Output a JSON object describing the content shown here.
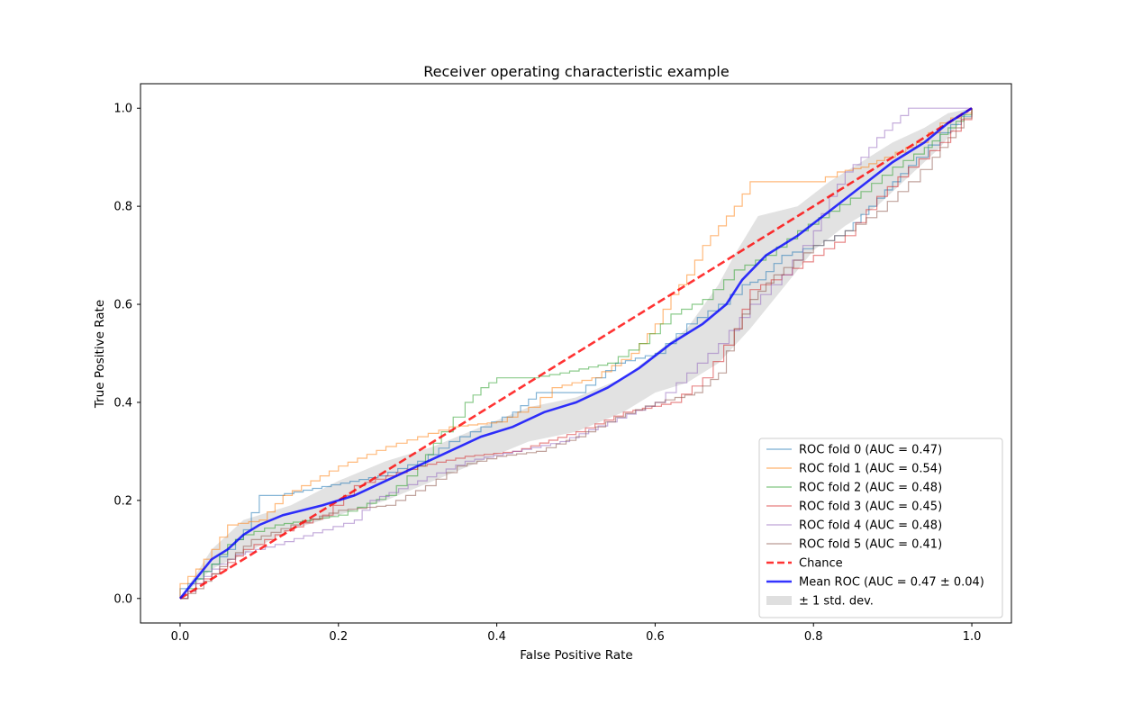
{
  "chart_data": {
    "type": "line",
    "title": "Receiver operating characteristic example",
    "xlabel": "False Positive Rate",
    "ylabel": "True Positive Rate",
    "xlim": [
      -0.05,
      1.05
    ],
    "ylim": [
      -0.05,
      1.05
    ],
    "xticks": [
      0.0,
      0.2,
      0.4,
      0.6,
      0.8,
      1.0
    ],
    "yticks": [
      0.0,
      0.2,
      0.4,
      0.6,
      0.8,
      1.0
    ],
    "xtick_labels": [
      "0.0",
      "0.2",
      "0.4",
      "0.6",
      "0.8",
      "1.0"
    ],
    "ytick_labels": [
      "0.0",
      "0.2",
      "0.4",
      "0.6",
      "0.8",
      "1.0"
    ],
    "grid": false,
    "legend_position": "lower-right",
    "series": [
      {
        "name": "ROC fold 0 (AUC = 0.47)",
        "color": "#1f77b4",
        "points": [
          [
            0,
            0
          ],
          [
            0,
            0.02
          ],
          [
            0.02,
            0.04
          ],
          [
            0.04,
            0.07
          ],
          [
            0.06,
            0.1
          ],
          [
            0.08,
            0.14
          ],
          [
            0.1,
            0.21
          ],
          [
            0.12,
            0.21
          ],
          [
            0.25,
            0.25
          ],
          [
            0.3,
            0.28
          ],
          [
            0.34,
            0.32
          ],
          [
            0.38,
            0.35
          ],
          [
            0.42,
            0.38
          ],
          [
            0.45,
            0.42
          ],
          [
            0.5,
            0.42
          ],
          [
            0.55,
            0.48
          ],
          [
            0.6,
            0.5
          ],
          [
            0.64,
            0.56
          ],
          [
            0.68,
            0.6
          ],
          [
            0.71,
            0.64
          ],
          [
            0.73,
            0.65
          ],
          [
            0.76,
            0.7
          ],
          [
            0.8,
            0.72
          ],
          [
            0.84,
            0.75
          ],
          [
            0.87,
            0.8
          ],
          [
            0.9,
            0.85
          ],
          [
            0.93,
            0.9
          ],
          [
            0.96,
            0.95
          ],
          [
            1,
            1
          ]
        ]
      },
      {
        "name": "ROC fold 1 (AUC = 0.54)",
        "color": "#ff7f0e",
        "points": [
          [
            0,
            0
          ],
          [
            0,
            0.03
          ],
          [
            0.02,
            0.06
          ],
          [
            0.04,
            0.1
          ],
          [
            0.06,
            0.15
          ],
          [
            0.1,
            0.16
          ],
          [
            0.13,
            0.21
          ],
          [
            0.2,
            0.27
          ],
          [
            0.26,
            0.31
          ],
          [
            0.3,
            0.33
          ],
          [
            0.34,
            0.35
          ],
          [
            0.4,
            0.36
          ],
          [
            0.44,
            0.39
          ],
          [
            0.47,
            0.43
          ],
          [
            0.52,
            0.45
          ],
          [
            0.57,
            0.5
          ],
          [
            0.6,
            0.56
          ],
          [
            0.62,
            0.62
          ],
          [
            0.64,
            0.66
          ],
          [
            0.66,
            0.72
          ],
          [
            0.68,
            0.76
          ],
          [
            0.7,
            0.8
          ],
          [
            0.72,
            0.85
          ],
          [
            0.8,
            0.85
          ],
          [
            0.83,
            0.87
          ],
          [
            0.86,
            0.88
          ],
          [
            0.89,
            0.9
          ],
          [
            0.93,
            0.93
          ],
          [
            0.96,
            0.97
          ],
          [
            1,
            1
          ]
        ]
      },
      {
        "name": "ROC fold 2 (AUC = 0.48)",
        "color": "#2ca02c",
        "points": [
          [
            0,
            0
          ],
          [
            0.02,
            0.04
          ],
          [
            0.04,
            0.07
          ],
          [
            0.06,
            0.11
          ],
          [
            0.08,
            0.13
          ],
          [
            0.12,
            0.15
          ],
          [
            0.2,
            0.17
          ],
          [
            0.26,
            0.21
          ],
          [
            0.3,
            0.27
          ],
          [
            0.33,
            0.34
          ],
          [
            0.36,
            0.4
          ],
          [
            0.38,
            0.43
          ],
          [
            0.4,
            0.45
          ],
          [
            0.44,
            0.45
          ],
          [
            0.48,
            0.46
          ],
          [
            0.54,
            0.48
          ],
          [
            0.58,
            0.52
          ],
          [
            0.62,
            0.58
          ],
          [
            0.66,
            0.61
          ],
          [
            0.7,
            0.67
          ],
          [
            0.74,
            0.7
          ],
          [
            0.78,
            0.75
          ],
          [
            0.82,
            0.79
          ],
          [
            0.86,
            0.83
          ],
          [
            0.9,
            0.88
          ],
          [
            0.94,
            0.92
          ],
          [
            0.97,
            0.96
          ],
          [
            1,
            1
          ]
        ]
      },
      {
        "name": "ROC fold 3 (AUC = 0.45)",
        "color": "#d62728",
        "points": [
          [
            0,
            0
          ],
          [
            0.02,
            0.03
          ],
          [
            0.05,
            0.06
          ],
          [
            0.08,
            0.1
          ],
          [
            0.12,
            0.13
          ],
          [
            0.18,
            0.17
          ],
          [
            0.22,
            0.23
          ],
          [
            0.26,
            0.25
          ],
          [
            0.3,
            0.27
          ],
          [
            0.36,
            0.29
          ],
          [
            0.42,
            0.3
          ],
          [
            0.5,
            0.34
          ],
          [
            0.56,
            0.38
          ],
          [
            0.62,
            0.4
          ],
          [
            0.66,
            0.45
          ],
          [
            0.7,
            0.55
          ],
          [
            0.72,
            0.63
          ],
          [
            0.76,
            0.66
          ],
          [
            0.8,
            0.7
          ],
          [
            0.84,
            0.74
          ],
          [
            0.88,
            0.82
          ],
          [
            0.92,
            0.88
          ],
          [
            0.96,
            0.93
          ],
          [
            1,
            1
          ]
        ]
      },
      {
        "name": "ROC fold 4 (AUC = 0.48)",
        "color": "#9467bd",
        "points": [
          [
            0,
            0
          ],
          [
            0.02,
            0.03
          ],
          [
            0.04,
            0.06
          ],
          [
            0.07,
            0.09
          ],
          [
            0.12,
            0.11
          ],
          [
            0.18,
            0.14
          ],
          [
            0.22,
            0.16
          ],
          [
            0.24,
            0.2
          ],
          [
            0.3,
            0.24
          ],
          [
            0.36,
            0.28
          ],
          [
            0.42,
            0.3
          ],
          [
            0.48,
            0.32
          ],
          [
            0.54,
            0.36
          ],
          [
            0.6,
            0.4
          ],
          [
            0.64,
            0.46
          ],
          [
            0.68,
            0.52
          ],
          [
            0.72,
            0.6
          ],
          [
            0.76,
            0.66
          ],
          [
            0.8,
            0.75
          ],
          [
            0.82,
            0.82
          ],
          [
            0.84,
            0.87
          ],
          [
            0.86,
            0.9
          ],
          [
            0.88,
            0.94
          ],
          [
            0.9,
            0.97
          ],
          [
            0.92,
            1
          ],
          [
            1,
            1
          ]
        ]
      },
      {
        "name": "ROC fold 5 (AUC = 0.41)",
        "color": "#8c564b",
        "points": [
          [
            0,
            0
          ],
          [
            0.02,
            0.02
          ],
          [
            0.04,
            0.05
          ],
          [
            0.06,
            0.08
          ],
          [
            0.09,
            0.12
          ],
          [
            0.14,
            0.15
          ],
          [
            0.2,
            0.18
          ],
          [
            0.26,
            0.19
          ],
          [
            0.31,
            0.23
          ],
          [
            0.35,
            0.27
          ],
          [
            0.4,
            0.29
          ],
          [
            0.45,
            0.3
          ],
          [
            0.5,
            0.33
          ],
          [
            0.55,
            0.37
          ],
          [
            0.6,
            0.4
          ],
          [
            0.65,
            0.42
          ],
          [
            0.68,
            0.46
          ],
          [
            0.7,
            0.55
          ],
          [
            0.72,
            0.61
          ],
          [
            0.75,
            0.66
          ],
          [
            0.8,
            0.72
          ],
          [
            0.84,
            0.75
          ],
          [
            0.88,
            0.79
          ],
          [
            0.92,
            0.85
          ],
          [
            0.95,
            0.9
          ],
          [
            0.98,
            0.96
          ],
          [
            1,
            1
          ]
        ]
      },
      {
        "name": "Chance",
        "color": "#ff0000",
        "style": "dashed",
        "points": [
          [
            0,
            0
          ],
          [
            1,
            1
          ]
        ]
      },
      {
        "name": "Mean ROC (AUC = 0.47 ± 0.04)",
        "color": "#0000ff",
        "points": [
          [
            0,
            0
          ],
          [
            0.02,
            0.04
          ],
          [
            0.04,
            0.08
          ],
          [
            0.06,
            0.1
          ],
          [
            0.08,
            0.13
          ],
          [
            0.1,
            0.15
          ],
          [
            0.13,
            0.17
          ],
          [
            0.18,
            0.19
          ],
          [
            0.22,
            0.21
          ],
          [
            0.26,
            0.24
          ],
          [
            0.3,
            0.27
          ],
          [
            0.34,
            0.3
          ],
          [
            0.38,
            0.33
          ],
          [
            0.42,
            0.35
          ],
          [
            0.46,
            0.38
          ],
          [
            0.5,
            0.4
          ],
          [
            0.54,
            0.43
          ],
          [
            0.58,
            0.47
          ],
          [
            0.62,
            0.52
          ],
          [
            0.66,
            0.56
          ],
          [
            0.69,
            0.6
          ],
          [
            0.71,
            0.65
          ],
          [
            0.74,
            0.7
          ],
          [
            0.78,
            0.74
          ],
          [
            0.82,
            0.79
          ],
          [
            0.86,
            0.84
          ],
          [
            0.9,
            0.89
          ],
          [
            0.94,
            0.93
          ],
          [
            0.97,
            0.97
          ],
          [
            1,
            1
          ]
        ]
      }
    ],
    "band": {
      "name": "± 1 std. dev.",
      "color": "#bfbfbf",
      "upper": [
        [
          0,
          0
        ],
        [
          0.04,
          0.1
        ],
        [
          0.08,
          0.16
        ],
        [
          0.14,
          0.19
        ],
        [
          0.2,
          0.24
        ],
        [
          0.26,
          0.28
        ],
        [
          0.32,
          0.31
        ],
        [
          0.38,
          0.35
        ],
        [
          0.44,
          0.39
        ],
        [
          0.5,
          0.41
        ],
        [
          0.56,
          0.45
        ],
        [
          0.6,
          0.5
        ],
        [
          0.64,
          0.55
        ],
        [
          0.68,
          0.64
        ],
        [
          0.7,
          0.7
        ],
        [
          0.73,
          0.78
        ],
        [
          0.78,
          0.8
        ],
        [
          0.82,
          0.85
        ],
        [
          0.86,
          0.89
        ],
        [
          0.9,
          0.93
        ],
        [
          0.94,
          0.96
        ],
        [
          0.97,
          0.99
        ],
        [
          1,
          1
        ]
      ],
      "lower": [
        [
          0,
          0
        ],
        [
          0.04,
          0.06
        ],
        [
          0.08,
          0.09
        ],
        [
          0.14,
          0.14
        ],
        [
          0.2,
          0.17
        ],
        [
          0.26,
          0.2
        ],
        [
          0.32,
          0.24
        ],
        [
          0.38,
          0.28
        ],
        [
          0.44,
          0.32
        ],
        [
          0.5,
          0.34
        ],
        [
          0.56,
          0.38
        ],
        [
          0.6,
          0.42
        ],
        [
          0.64,
          0.44
        ],
        [
          0.68,
          0.48
        ],
        [
          0.72,
          0.55
        ],
        [
          0.76,
          0.63
        ],
        [
          0.8,
          0.71
        ],
        [
          0.84,
          0.76
        ],
        [
          0.88,
          0.8
        ],
        [
          0.92,
          0.86
        ],
        [
          0.96,
          0.92
        ],
        [
          1,
          1
        ]
      ]
    }
  }
}
